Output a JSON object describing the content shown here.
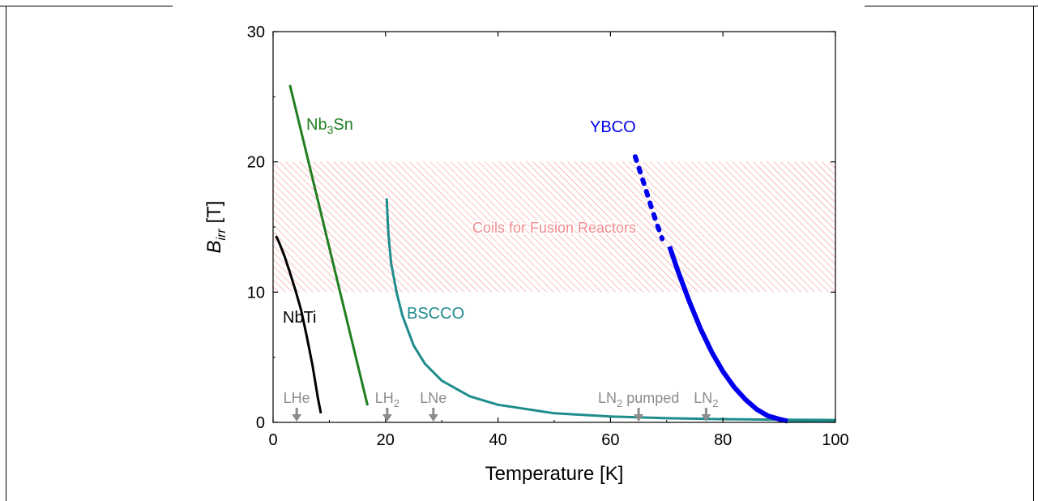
{
  "chart_data": {
    "type": "line",
    "xlabel": "Temperature [K]",
    "ylabel": {
      "main": "B",
      "sub": "irr",
      "unit": "[T]"
    },
    "xlim": [
      0,
      100
    ],
    "ylim": [
      0,
      30
    ],
    "x_ticks": [
      0,
      20,
      40,
      60,
      80,
      100
    ],
    "y_ticks": [
      0,
      10,
      20,
      30
    ],
    "grid": false,
    "legend": "none",
    "band": {
      "label": "Coils for Fusion Reactors",
      "y_range": [
        10,
        20
      ],
      "color": "#f28b8b"
    },
    "series": [
      {
        "name": "NbTi",
        "label_parts": {
          "main": "NbTi"
        },
        "color": "#000000",
        "points": [
          [
            0.5,
            14.3
          ],
          [
            1,
            13.9
          ],
          [
            2,
            12.8
          ],
          [
            3,
            11.5
          ],
          [
            4,
            10.1
          ],
          [
            5,
            8.6
          ],
          [
            6,
            6.6
          ],
          [
            7,
            4.4
          ],
          [
            8,
            1.8
          ],
          [
            8.5,
            0.7
          ]
        ]
      },
      {
        "name": "Nb3Sn",
        "label_parts": {
          "main": "Nb",
          "sub": "3",
          "tail": "Sn"
        },
        "color": "#1f7f1f",
        "points": [
          [
            3,
            25.9
          ],
          [
            16.8,
            1.3
          ]
        ]
      },
      {
        "name": "BSCCO",
        "label_parts": {
          "main": "BSCCO"
        },
        "color": "#1f8c8c",
        "points": [
          [
            20.2,
            17.2
          ],
          [
            20.5,
            14.5
          ],
          [
            21,
            12.2
          ],
          [
            22,
            9.9
          ],
          [
            23,
            8.2
          ],
          [
            25,
            5.9
          ],
          [
            27,
            4.5
          ],
          [
            30,
            3.2
          ],
          [
            35,
            2.0
          ],
          [
            40,
            1.35
          ],
          [
            50,
            0.7
          ],
          [
            60,
            0.45
          ],
          [
            70,
            0.32
          ],
          [
            80,
            0.25
          ],
          [
            90,
            0.2
          ],
          [
            100,
            0.18
          ]
        ]
      },
      {
        "name": "YBCO",
        "label_parts": {
          "main": "YBCO"
        },
        "color": "#0000ee",
        "dashed_points": [
          [
            64.4,
            20.4
          ],
          [
            65.3,
            19.2
          ],
          [
            66.2,
            18.0
          ],
          [
            67.2,
            16.6
          ],
          [
            68.2,
            15.3
          ],
          [
            69.2,
            14.1
          ]
        ],
        "points": [
          [
            70.5,
            13.5
          ],
          [
            72,
            11.6
          ],
          [
            74,
            9.3
          ],
          [
            76,
            7.2
          ],
          [
            78,
            5.4
          ],
          [
            80,
            3.9
          ],
          [
            82,
            2.7
          ],
          [
            84,
            1.75
          ],
          [
            86,
            1.0
          ],
          [
            88,
            0.5
          ],
          [
            90,
            0.25
          ],
          [
            91.5,
            0.1
          ]
        ],
        "baseline": [
          [
            91.5,
            0.1
          ],
          [
            100,
            0.1
          ]
        ]
      }
    ],
    "temperature_markers": [
      {
        "label_parts": {
          "main": "LHe"
        },
        "x": 4.2
      },
      {
        "label_parts": {
          "main": "LH",
          "sub": "2"
        },
        "x": 20.3
      },
      {
        "label_parts": {
          "main": "LNe"
        },
        "x": 28.5
      },
      {
        "label_parts": {
          "main": "LN",
          "sub": "2",
          "tail": " pumped"
        },
        "x": 65
      },
      {
        "label_parts": {
          "main": "LN",
          "sub": "2"
        },
        "x": 77
      }
    ],
    "colors": {
      "axis": "#000000",
      "marker": "#8c8c8c"
    }
  }
}
